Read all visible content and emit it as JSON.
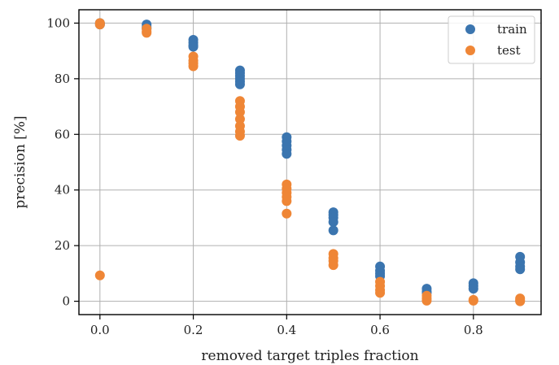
{
  "chart_data": {
    "type": "scatter",
    "xlabel": "removed target triples fraction",
    "ylabel": "precision [%]",
    "xlim": [
      -0.045,
      0.945
    ],
    "ylim": [
      -4.8,
      104.8
    ],
    "xticks": [
      0.0,
      0.2,
      0.4,
      0.6,
      0.8
    ],
    "xtick_labels": [
      "0.0",
      "0.2",
      "0.4",
      "0.6",
      "0.8"
    ],
    "yticks": [
      0,
      20,
      40,
      60,
      80,
      100
    ],
    "ytick_labels": [
      "0",
      "20",
      "40",
      "60",
      "80",
      "100"
    ],
    "grid": true,
    "legend_position": "top-right",
    "series": [
      {
        "name": "train",
        "color": "#3b75af",
        "points": [
          [
            0.0,
            100
          ],
          [
            0.0,
            99.5
          ],
          [
            0.1,
            99.5
          ],
          [
            0.1,
            98.5
          ],
          [
            0.1,
            98
          ],
          [
            0.2,
            94
          ],
          [
            0.2,
            93
          ],
          [
            0.2,
            92
          ],
          [
            0.2,
            91.5
          ],
          [
            0.3,
            83
          ],
          [
            0.3,
            82
          ],
          [
            0.3,
            81
          ],
          [
            0.3,
            80
          ],
          [
            0.3,
            79
          ],
          [
            0.3,
            78
          ],
          [
            0.4,
            59
          ],
          [
            0.4,
            57.5
          ],
          [
            0.4,
            56
          ],
          [
            0.4,
            54.5
          ],
          [
            0.4,
            53
          ],
          [
            0.5,
            32
          ],
          [
            0.5,
            31
          ],
          [
            0.5,
            30
          ],
          [
            0.5,
            28.5
          ],
          [
            0.5,
            25.5
          ],
          [
            0.6,
            12.5
          ],
          [
            0.6,
            11
          ],
          [
            0.6,
            10
          ],
          [
            0.6,
            9
          ],
          [
            0.7,
            4.5
          ],
          [
            0.7,
            3.5
          ],
          [
            0.7,
            3
          ],
          [
            0.8,
            6.5
          ],
          [
            0.8,
            5.5
          ],
          [
            0.8,
            4.5
          ],
          [
            0.9,
            16
          ],
          [
            0.9,
            14
          ],
          [
            0.9,
            12.5
          ],
          [
            0.9,
            11.5
          ]
        ]
      },
      {
        "name": "test",
        "color": "#ef8636",
        "points": [
          [
            0.0,
            100
          ],
          [
            0.0,
            99.5
          ],
          [
            0.0,
            9.3
          ],
          [
            0.1,
            98
          ],
          [
            0.1,
            97
          ],
          [
            0.1,
            96.5
          ],
          [
            0.2,
            88
          ],
          [
            0.2,
            86.5
          ],
          [
            0.2,
            85.5
          ],
          [
            0.2,
            84.5
          ],
          [
            0.3,
            72
          ],
          [
            0.3,
            70
          ],
          [
            0.3,
            68
          ],
          [
            0.3,
            65.5
          ],
          [
            0.3,
            63
          ],
          [
            0.3,
            61
          ],
          [
            0.3,
            59.5
          ],
          [
            0.4,
            42
          ],
          [
            0.4,
            40.5
          ],
          [
            0.4,
            39
          ],
          [
            0.4,
            37.5
          ],
          [
            0.4,
            36
          ],
          [
            0.4,
            31.5
          ],
          [
            0.5,
            17
          ],
          [
            0.5,
            15.5
          ],
          [
            0.5,
            14.5
          ],
          [
            0.5,
            13
          ],
          [
            0.6,
            7
          ],
          [
            0.6,
            5.5
          ],
          [
            0.6,
            4
          ],
          [
            0.6,
            3
          ],
          [
            0.7,
            2
          ],
          [
            0.7,
            1
          ],
          [
            0.7,
            0.2
          ],
          [
            0.8,
            0.5
          ],
          [
            0.8,
            0.2
          ],
          [
            0.9,
            1
          ],
          [
            0.9,
            0.3
          ],
          [
            0.9,
            0
          ]
        ]
      }
    ]
  }
}
